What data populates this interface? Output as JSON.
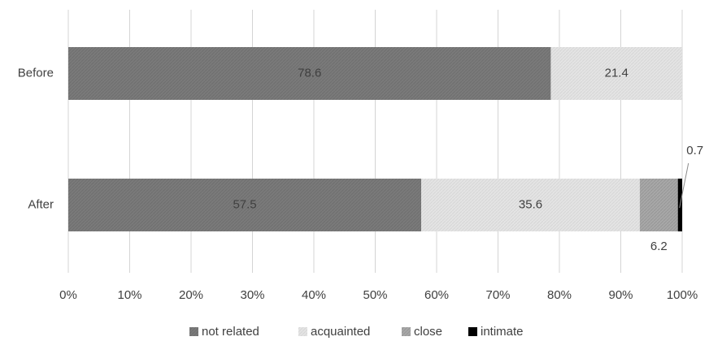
{
  "chart_data": {
    "type": "bar",
    "orientation": "horizontal",
    "stacked": true,
    "percent": true,
    "categories": [
      "Before",
      "After"
    ],
    "series": [
      {
        "name": "not related",
        "values": [
          78.6,
          57.5
        ],
        "color": "#7a7a7a"
      },
      {
        "name": "acquainted",
        "values": [
          21.4,
          35.6
        ],
        "color": "#e2e2e2"
      },
      {
        "name": "close",
        "values": [
          0,
          6.2
        ],
        "color": "#a6a6a6"
      },
      {
        "name": "intimate",
        "values": [
          0,
          0.7
        ],
        "color": "#000000"
      }
    ],
    "data_labels": [
      {
        "category": "Before",
        "series": "not related",
        "text": "78.6"
      },
      {
        "category": "Before",
        "series": "acquainted",
        "text": "21.4"
      },
      {
        "category": "After",
        "series": "not related",
        "text": "57.5"
      },
      {
        "category": "After",
        "series": "acquainted",
        "text": "35.6"
      },
      {
        "category": "After",
        "series": "close",
        "text": "6.2"
      },
      {
        "category": "After",
        "series": "intimate",
        "text": "0.7"
      }
    ],
    "x_ticks": [
      "0%",
      "10%",
      "20%",
      "30%",
      "40%",
      "50%",
      "60%",
      "70%",
      "80%",
      "90%",
      "100%"
    ],
    "xlim": [
      0,
      100
    ],
    "grid": true,
    "legend": "bottom",
    "title": "",
    "xlabel": "",
    "ylabel": ""
  }
}
